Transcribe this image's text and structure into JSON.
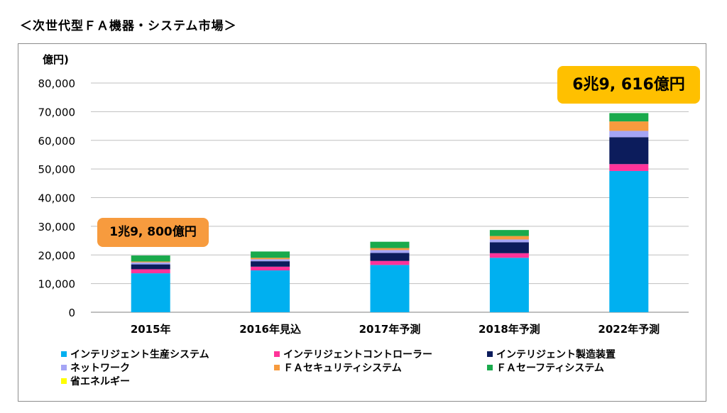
{
  "page_title": "＜次世代型ＦＡ機器・システム市場＞",
  "chart_data": {
    "type": "bar",
    "stacked": true,
    "y_unit_label": "億円)",
    "ylim": [
      0,
      80000
    ],
    "y_ticks": [
      "0",
      "10,000",
      "20,000",
      "30,000",
      "40,000",
      "50,000",
      "60,000",
      "70,000",
      "80,000"
    ],
    "y_tick_values": [
      0,
      10000,
      20000,
      30000,
      40000,
      50000,
      60000,
      70000,
      80000
    ],
    "grid": true,
    "categories": [
      "2015年",
      "2016年見込",
      "2017年予測",
      "2018年予測",
      "2022年予測"
    ],
    "series": [
      {
        "name": "インテリジェント生産システム",
        "color": "#00b0f0",
        "values": [
          13600,
          14600,
          16500,
          19000,
          49300
        ]
      },
      {
        "name": "インテリジェントコントローラー",
        "color": "#ff3399",
        "values": [
          1400,
          1300,
          1400,
          1600,
          2400
        ]
      },
      {
        "name": "インテリジェント製造装置",
        "color": "#0c1c5c",
        "values": [
          1700,
          1900,
          2800,
          3800,
          9400
        ]
      },
      {
        "name": "ネットワーク",
        "color": "#a5a5f5",
        "values": [
          700,
          700,
          1000,
          1000,
          2200
        ]
      },
      {
        "name": "ＦＡセキュリティシステム",
        "color": "#f79b3e",
        "values": [
          300,
          500,
          700,
          1200,
          3300
        ]
      },
      {
        "name": "ＦＡセーフティシステム",
        "color": "#1aaa4c",
        "values": [
          2100,
          2200,
          2200,
          2100,
          2900
        ]
      },
      {
        "name": "省エネルギー",
        "color": "#ffff00",
        "values": [
          0,
          0,
          0,
          0,
          0
        ]
      }
    ],
    "legend_position": "bottom",
    "annotations": [
      {
        "category": "2015年",
        "text": "1兆9, 800億円",
        "color": "#f79b3e"
      },
      {
        "category": "2022年予測",
        "text": "6兆9, 616億円",
        "color": "#ffc000"
      }
    ]
  }
}
